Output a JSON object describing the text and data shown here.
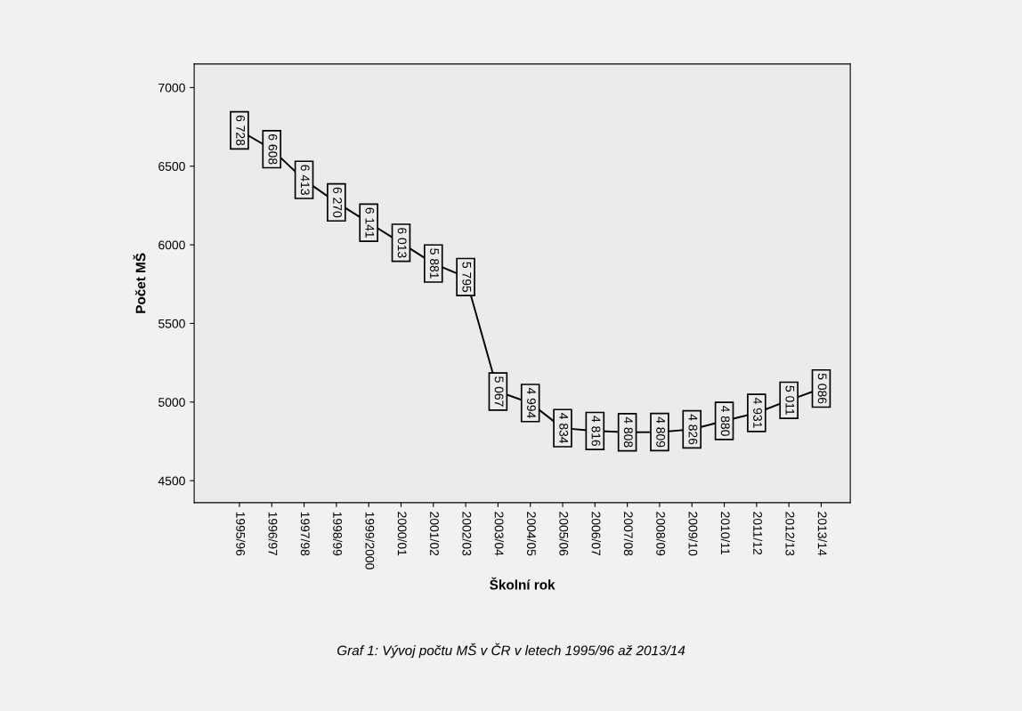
{
  "chart_data": {
    "type": "line",
    "xlabel": "Školní rok",
    "ylabel": "Počet MŠ",
    "categories": [
      "1995/96",
      "1996/97",
      "1997/98",
      "1998/99",
      "1999/2000",
      "2000/01",
      "2001/02",
      "2002/03",
      "2003/04",
      "2004/05",
      "2005/06",
      "2006/07",
      "2007/08",
      "2008/09",
      "2009/10",
      "2010/11",
      "2011/12",
      "2012/13",
      "2013/14"
    ],
    "series": [
      {
        "color": "#000000",
        "values": [
          6728,
          6608,
          6413,
          6270,
          6141,
          6013,
          5881,
          5795,
          5067,
          4994,
          4834,
          4816,
          4808,
          4809,
          4826,
          4880,
          4931,
          5011,
          5086
        ],
        "value_labels": [
          "6 728",
          "6 608",
          "6 413",
          "6 270",
          "6 141",
          "6 013",
          "5 881",
          "5 795",
          "5 067",
          "4 994",
          "4 834",
          "4 816",
          "4 808",
          "4 809",
          "4 826",
          "4 880",
          "4 931",
          "5 011",
          "5 086"
        ]
      }
    ],
    "ylim": [
      4360,
      7150
    ],
    "yticks": [
      4500,
      5000,
      5500,
      6000,
      6500,
      7000
    ],
    "grid": false,
    "legend": false,
    "marker": "square",
    "line_style": "solid",
    "annotations": [
      "Graf 1: Vývoj počtu MŠ v ČR v letech 1995/96 až 2013/14"
    ]
  }
}
